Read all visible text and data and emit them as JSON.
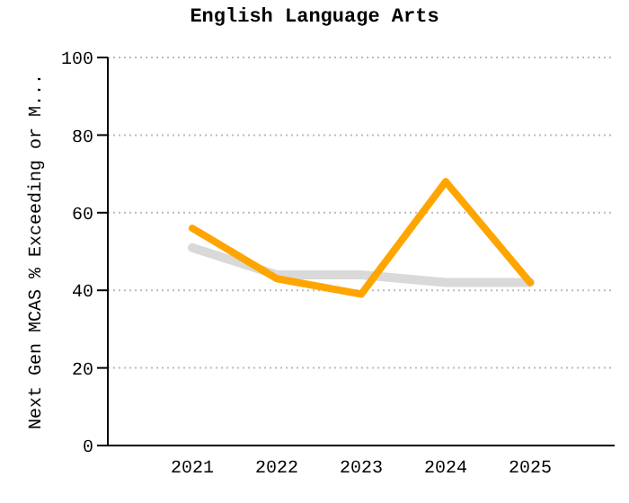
{
  "chart_data": {
    "type": "line",
    "title": "English Language Arts",
    "ylabel": "Next Gen MCAS % Exceeding or M...",
    "x": [
      2021,
      2022,
      2023,
      2024,
      2025
    ],
    "series": [
      {
        "color": "#d9d9d9",
        "values": [
          51,
          44,
          44,
          42,
          42
        ]
      },
      {
        "color": "#ffa500",
        "values": [
          56,
          43,
          39,
          68,
          42
        ]
      }
    ],
    "xlim": [
      2020,
      2026
    ],
    "xticks": [
      2021,
      2022,
      2023,
      2024,
      2025
    ],
    "ylim": [
      0,
      100
    ],
    "yticks": [
      0,
      20,
      40,
      60,
      80,
      100
    ],
    "grid": "y",
    "marker": "none",
    "line_style": "solid"
  }
}
